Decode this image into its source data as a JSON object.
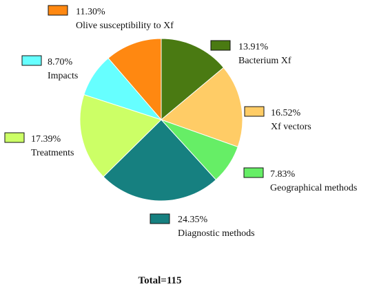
{
  "chart_data": {
    "type": "pie",
    "title": "",
    "total_label": "Total=115",
    "slices": [
      {
        "name": "Bacterium Xf",
        "percent_label": "13.91%",
        "value": 13.91,
        "color": "#4a7a12"
      },
      {
        "name": "Xf vectors",
        "percent_label": "16.52%",
        "value": 16.52,
        "color": "#ffcc66"
      },
      {
        "name": "Geographical methods",
        "percent_label": "7.83%",
        "value": 7.83,
        "color": "#66ee66"
      },
      {
        "name": "Diagnostic methods",
        "percent_label": "24.35%",
        "value": 24.35,
        "color": "#168080"
      },
      {
        "name": "Treatments",
        "percent_label": "17.39%",
        "value": 17.39,
        "color": "#ccff66"
      },
      {
        "name": "Impacts",
        "percent_label": "8.70%",
        "value": 8.7,
        "color": "#66ffff"
      },
      {
        "name": "Olive susceptibility to Xf",
        "percent_label": "11.30%",
        "value": 11.3,
        "color": "#ff8811"
      }
    ],
    "legend_placement": "around-pie",
    "start_angle": "12 o'clock",
    "direction": "clockwise"
  }
}
